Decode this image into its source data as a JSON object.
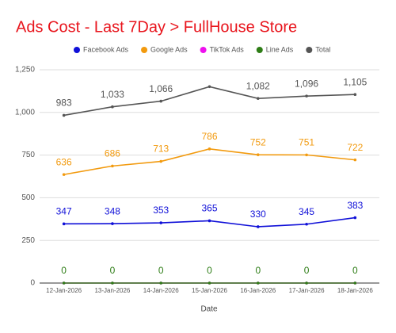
{
  "chart_data": {
    "type": "line",
    "title": "Ads Cost - Last 7Day > FullHouse Store",
    "x_label": "Date",
    "categories": [
      "12-Jan-2026",
      "13-Jan-2026",
      "14-Jan-2026",
      "15-Jan-2026",
      "16-Jan-2026",
      "17-Jan-2026",
      "18-Jan-2026"
    ],
    "series": [
      {
        "name": "Facebook Ads",
        "color": "#1010d8",
        "values": [
          347,
          348,
          353,
          365,
          330,
          345,
          383
        ],
        "data_labels": true
      },
      {
        "name": "Google Ads",
        "color": "#f29a0e",
        "values": [
          636,
          686,
          713,
          786,
          752,
          751,
          722
        ],
        "data_labels": true
      },
      {
        "name": "TikTok Ads",
        "color": "#ee10ee",
        "values": [
          0,
          0,
          0,
          0,
          0,
          0,
          0
        ],
        "data_labels": false
      },
      {
        "name": "Line Ads",
        "color": "#2e7d16",
        "values": [
          0,
          0,
          0,
          0,
          0,
          0,
          0
        ],
        "data_labels": true
      },
      {
        "name": "Total",
        "color": "#555555",
        "values": [
          983,
          1033,
          1066,
          1151,
          1082,
          1096,
          1105
        ],
        "data_labels": true,
        "value_labels": [
          "983",
          "1,033",
          "1,066",
          null,
          "1,082",
          "1,096",
          "1,105"
        ]
      }
    ],
    "ylim": [
      0,
      1250
    ],
    "yticks": [
      0,
      250,
      500,
      750,
      {
        "value": 1000,
        "label": "1,000"
      },
      {
        "value": 1250,
        "label": "1,250"
      }
    ],
    "grid": true,
    "legend": "top"
  }
}
